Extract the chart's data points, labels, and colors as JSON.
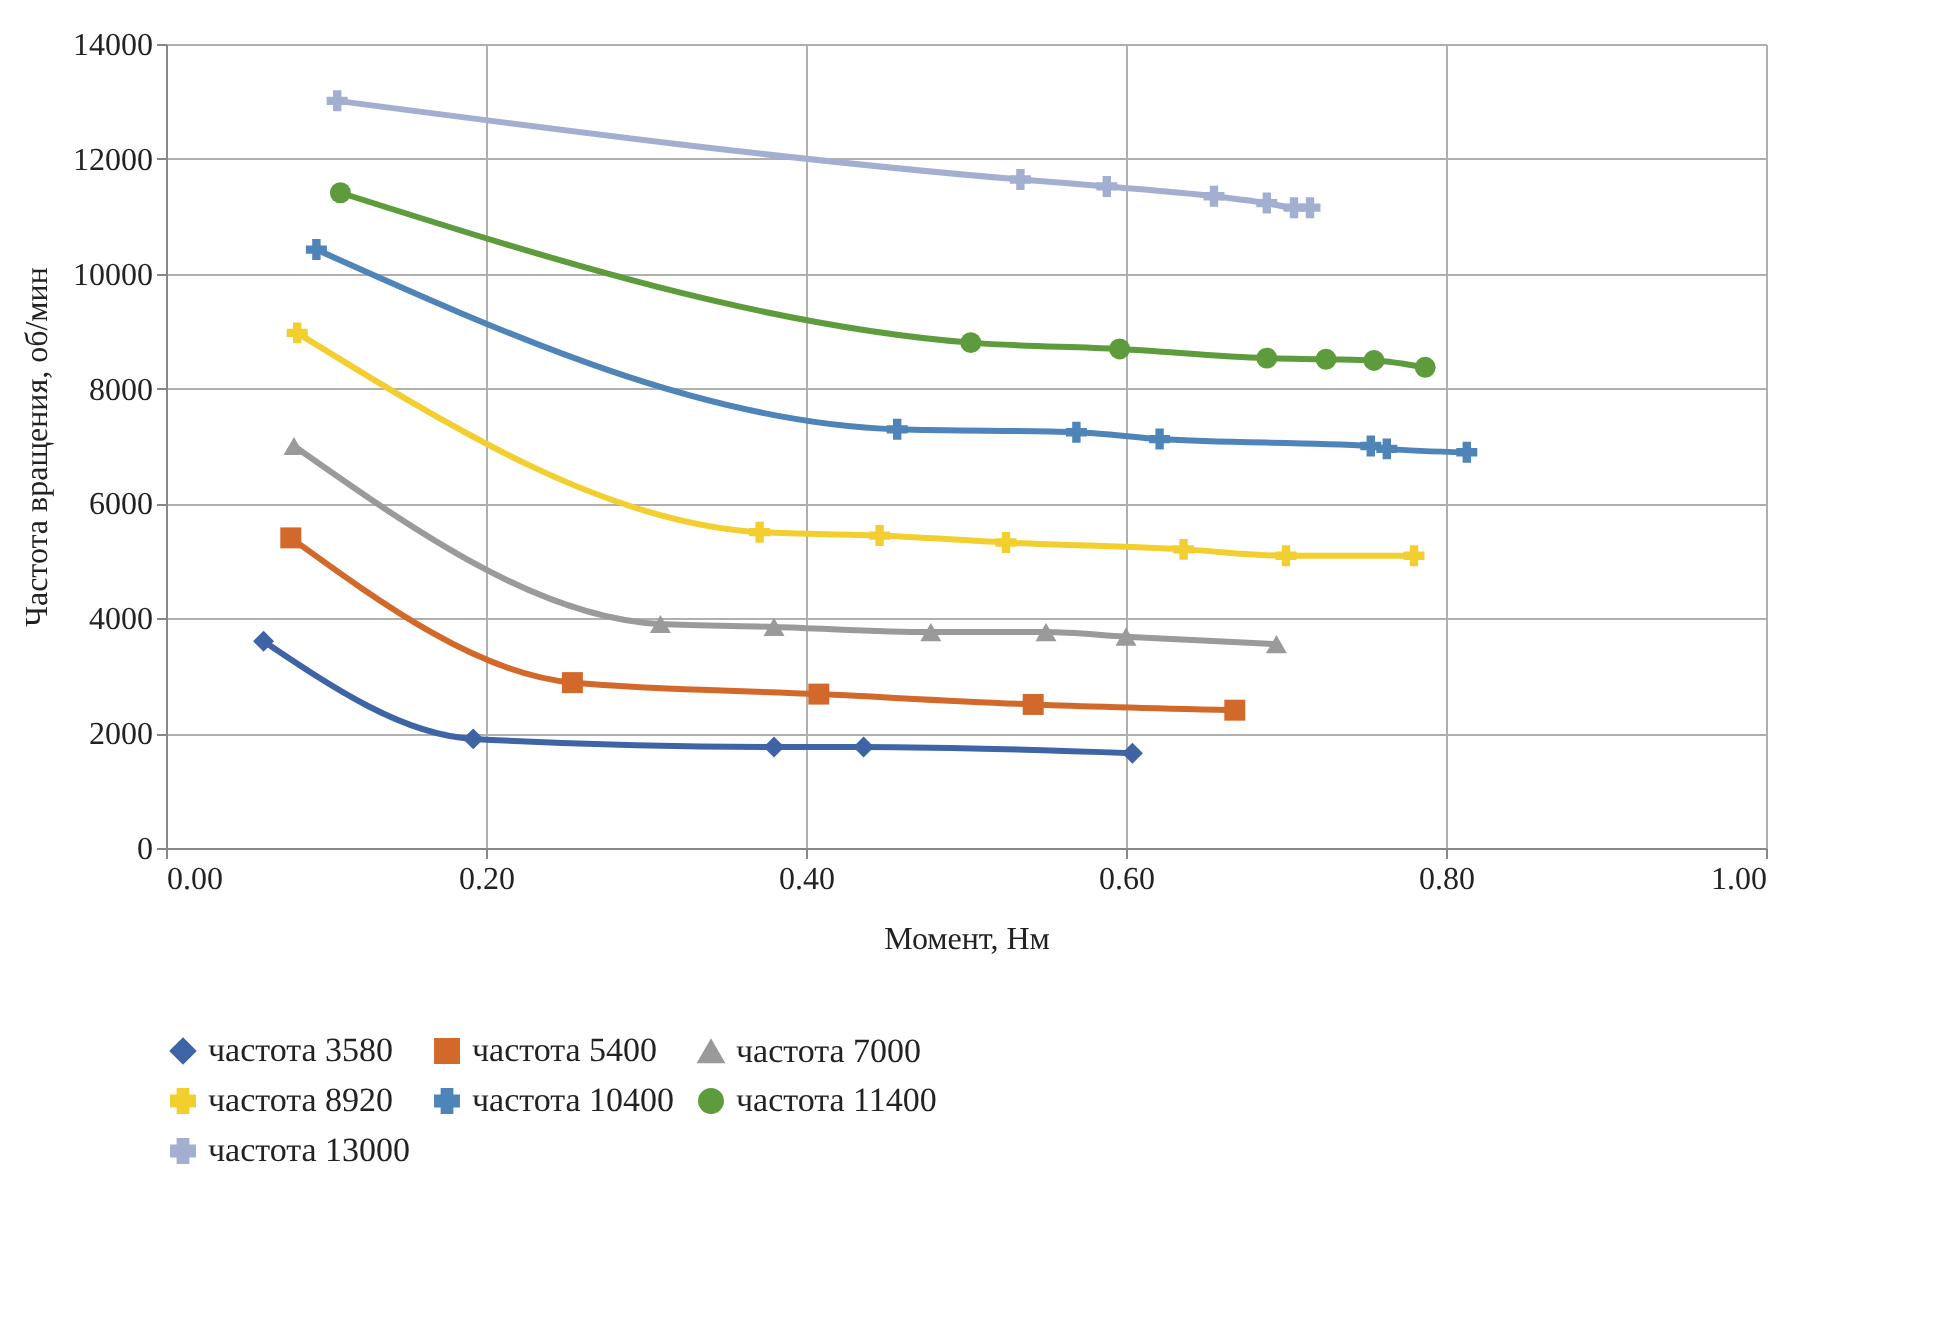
{
  "chart_data": {
    "type": "line",
    "xlabel": "Момент, Нм",
    "ylabel": "Частота вращения, об/мин",
    "xlim": [
      0,
      1
    ],
    "xticks": [
      {
        "value": 0,
        "label": "0.00"
      },
      {
        "value": 0.2,
        "label": "0.20"
      },
      {
        "value": 0.4,
        "label": "0.40"
      },
      {
        "value": 0.6,
        "label": "0.60"
      },
      {
        "value": 0.8,
        "label": "0.80"
      },
      {
        "value": 1,
        "label": "1.00"
      }
    ],
    "ylim": [
      0,
      14000
    ],
    "yticks": [
      0,
      2000,
      4000,
      6000,
      8000,
      10000,
      12000,
      14000
    ],
    "grid": true,
    "legend": "bottom",
    "series": [
      {
        "name": "частота 3580",
        "color": "#3f64a5",
        "marker": "diamond",
        "x": [
          0.061,
          0.192,
          0.38,
          0.436,
          0.604
        ],
        "values": [
          3600,
          1900,
          1760,
          1760,
          1650
        ]
      },
      {
        "name": "частота 5400",
        "color": "#d2692a",
        "marker": "square",
        "x": [
          0.078,
          0.254,
          0.408,
          0.542,
          0.668
        ],
        "values": [
          5400,
          2880,
          2680,
          2500,
          2400
        ]
      },
      {
        "name": "частота 7000",
        "color": "#9a9a9a",
        "marker": "triangle",
        "x": [
          0.08,
          0.309,
          0.38,
          0.478,
          0.55,
          0.6,
          0.694
        ],
        "values": [
          7000,
          3900,
          3850,
          3760,
          3760,
          3680,
          3550
        ]
      },
      {
        "name": "частота 8920",
        "color": "#f2cf2e",
        "marker": "cross",
        "x": [
          0.082,
          0.371,
          0.446,
          0.525,
          0.636,
          0.7,
          0.78
        ],
        "values": [
          8970,
          5500,
          5440,
          5320,
          5200,
          5090,
          5090
        ]
      },
      {
        "name": "частота 10400",
        "color": "#4f84b8",
        "marker": "cross",
        "x": [
          0.094,
          0.457,
          0.569,
          0.621,
          0.753,
          0.763,
          0.813
        ],
        "values": [
          10420,
          7290,
          7240,
          7120,
          7000,
          6950,
          6890
        ]
      },
      {
        "name": "частота 11400",
        "color": "#5e9b3c",
        "marker": "circle",
        "x": [
          0.109,
          0.503,
          0.596,
          0.688,
          0.725,
          0.755,
          0.787
        ],
        "values": [
          11410,
          8800,
          8690,
          8530,
          8510,
          8490,
          8370
        ]
      },
      {
        "name": "частота 13000",
        "color": "#a3afd0",
        "marker": "cross",
        "x": [
          0.107,
          0.534,
          0.588,
          0.655,
          0.688,
          0.705,
          0.715
        ],
        "values": [
          13010,
          11640,
          11520,
          11350,
          11230,
          11150,
          11150
        ]
      }
    ]
  }
}
